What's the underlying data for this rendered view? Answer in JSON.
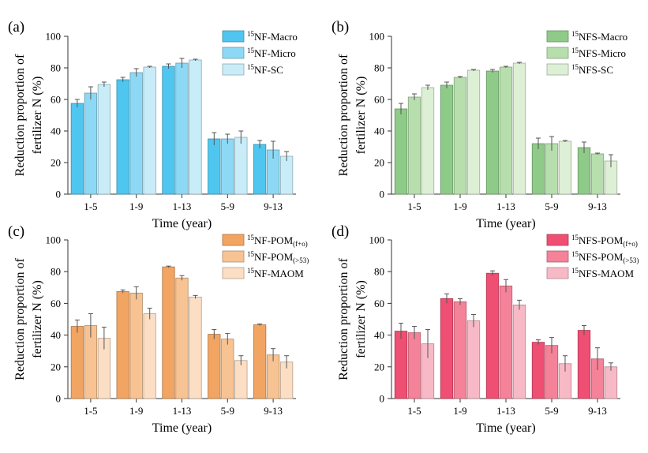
{
  "figure": {
    "background": "#ffffff"
  },
  "chart_data": [
    {
      "panel": "(a)",
      "type": "bar",
      "categories": [
        "1-5",
        "1-9",
        "1-13",
        "5-9",
        "9-13"
      ],
      "xlabel": "Time (year)",
      "ylabel_lines": [
        "Reduction proportion of",
        "fertilizer N (%)"
      ],
      "ylim": [
        0,
        100
      ],
      "yticks": [
        0,
        20,
        40,
        60,
        80,
        100
      ],
      "legend_position": "top-right",
      "grid": false,
      "series": [
        {
          "name_sup": "15",
          "name": "NF-Macro",
          "color": "#4fc6f0",
          "values": [
            57.5,
            72.5,
            81,
            35,
            31.5
          ],
          "errors": [
            2.5,
            1.5,
            1.5,
            4,
            2.5
          ]
        },
        {
          "name_sup": "15",
          "name": "NF-Micro",
          "color": "#8dd9f5",
          "values": [
            64,
            77,
            83,
            35,
            28
          ],
          "errors": [
            4,
            2.5,
            3,
            3,
            5.5
          ]
        },
        {
          "name_sup": "15",
          "name": "NF-SC",
          "color": "#c9ecf9",
          "values": [
            69.5,
            80.5,
            85,
            36,
            24
          ],
          "errors": [
            1.5,
            0.5,
            0.5,
            4,
            3
          ]
        }
      ]
    },
    {
      "panel": "(b)",
      "type": "bar",
      "categories": [
        "1-5",
        "1-9",
        "1-13",
        "5-9",
        "9-13"
      ],
      "xlabel": "Time (year)",
      "ylabel_lines": [
        "Reduction proportion of",
        "fertilizer N (%)"
      ],
      "ylim": [
        0,
        100
      ],
      "yticks": [
        0,
        20,
        40,
        60,
        80,
        100
      ],
      "legend_position": "top-right",
      "grid": false,
      "series": [
        {
          "name_sup": "15",
          "name": "NFS-Macro",
          "color": "#8fcb88",
          "values": [
            54,
            69,
            78,
            32,
            29.5
          ],
          "errors": [
            3.5,
            2,
            1,
            3.5,
            3.5
          ]
        },
        {
          "name_sup": "15",
          "name": "NFS-Micro",
          "color": "#b7dfae",
          "values": [
            61.5,
            74,
            80.5,
            32,
            25.5
          ],
          "errors": [
            2,
            0.5,
            0.5,
            4.5,
            0.5
          ]
        },
        {
          "name_sup": "15",
          "name": "NFS-SC",
          "color": "#ddf0d6",
          "values": [
            67.5,
            78.5,
            83,
            33.5,
            21
          ],
          "errors": [
            1.5,
            0.5,
            0.5,
            0.5,
            4
          ]
        }
      ]
    },
    {
      "panel": "(c)",
      "type": "bar",
      "categories": [
        "1-5",
        "1-9",
        "1-13",
        "5-9",
        "9-13"
      ],
      "xlabel": "Time (year)",
      "ylabel_lines": [
        "Reduction proportion of",
        "fertilizer N (%)"
      ],
      "ylim": [
        0,
        100
      ],
      "yticks": [
        0,
        20,
        40,
        60,
        80,
        100
      ],
      "legend_position": "top-right",
      "grid": false,
      "series": [
        {
          "name_sup": "15",
          "name": "NF-POM",
          "name_sub": "(f+o)",
          "color": "#f2a462",
          "values": [
            45.5,
            67.5,
            83,
            40.5,
            46.5
          ],
          "errors": [
            4,
            1,
            0.5,
            3,
            0.5
          ]
        },
        {
          "name_sup": "15",
          "name": "NF-POM",
          "name_sub": "(>53)",
          "color": "#f7c393",
          "values": [
            46,
            66.5,
            76,
            37.5,
            27.5
          ],
          "errors": [
            7.5,
            4,
            1.5,
            3.5,
            4
          ]
        },
        {
          "name_sup": "15",
          "name": "NF-MAOM",
          "color": "#fbdec4",
          "values": [
            38,
            53.5,
            64,
            24,
            23
          ],
          "errors": [
            7,
            3.5,
            1,
            3,
            4
          ]
        }
      ]
    },
    {
      "panel": "(d)",
      "type": "bar",
      "categories": [
        "1-5",
        "1-9",
        "1-13",
        "5-9",
        "9-13"
      ],
      "xlabel": "Time (year)",
      "ylabel_lines": [
        "Reduction proportion of",
        "fertilizer N (%)"
      ],
      "ylim": [
        0,
        100
      ],
      "yticks": [
        0,
        20,
        40,
        60,
        80,
        100
      ],
      "legend_position": "top-right",
      "grid": false,
      "series": [
        {
          "name_sup": "15",
          "name": "NFS-POM",
          "name_sub": "(f+o)",
          "color": "#ef4f72",
          "values": [
            42.5,
            63,
            79,
            35.5,
            43
          ],
          "errors": [
            5,
            3,
            1.5,
            1.5,
            3
          ]
        },
        {
          "name_sup": "15",
          "name": "NFS-POM",
          "name_sub": "(>53)",
          "color": "#f48299",
          "values": [
            41.5,
            61,
            71,
            33.5,
            25
          ],
          "errors": [
            4,
            2,
            4,
            5,
            7
          ]
        },
        {
          "name_sup": "15",
          "name": "NFS-MAOM",
          "color": "#f8b9c6",
          "values": [
            34.5,
            49,
            59,
            22,
            20
          ],
          "errors": [
            9,
            4,
            3,
            5,
            2.5
          ]
        }
      ]
    }
  ]
}
